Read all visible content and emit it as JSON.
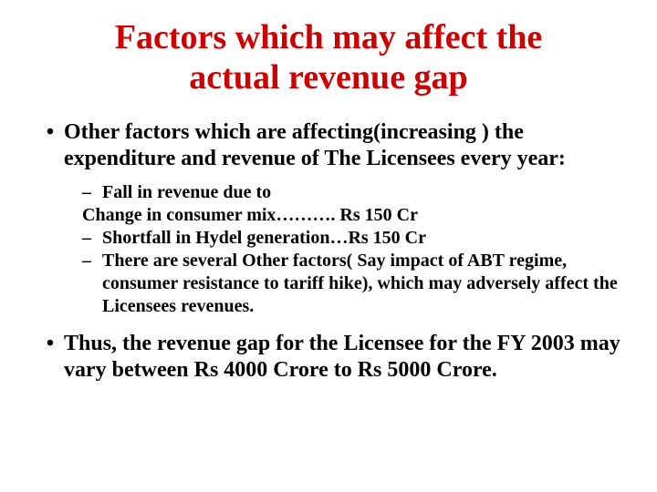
{
  "title_color": "#cc0000",
  "text_color": "#000000",
  "background_color": "#ffffff",
  "title": "Factors which may affect the actual revenue gap",
  "bullets": [
    {
      "text": "Other factors which are affecting(increasing ) the expenditure and revenue of The Licensees every year:",
      "sub": [
        {
          "dash": "–",
          "text": " Fall in revenue due to",
          "cont": "Change in consumer mix………. Rs 150 Cr"
        },
        {
          "dash": "–",
          "text": " Shortfall in Hydel generation…Rs 150 Cr"
        },
        {
          "dash": "–",
          "text": " There are several Other factors( Say impact of ABT regime, consumer resistance to tariff hike), which may adversely affect the Licensees revenues."
        }
      ]
    },
    {
      "text": "Thus, the revenue gap for the  Licensee for the FY 2003 may vary between Rs 4000 Crore to Rs 5000 Crore."
    }
  ]
}
